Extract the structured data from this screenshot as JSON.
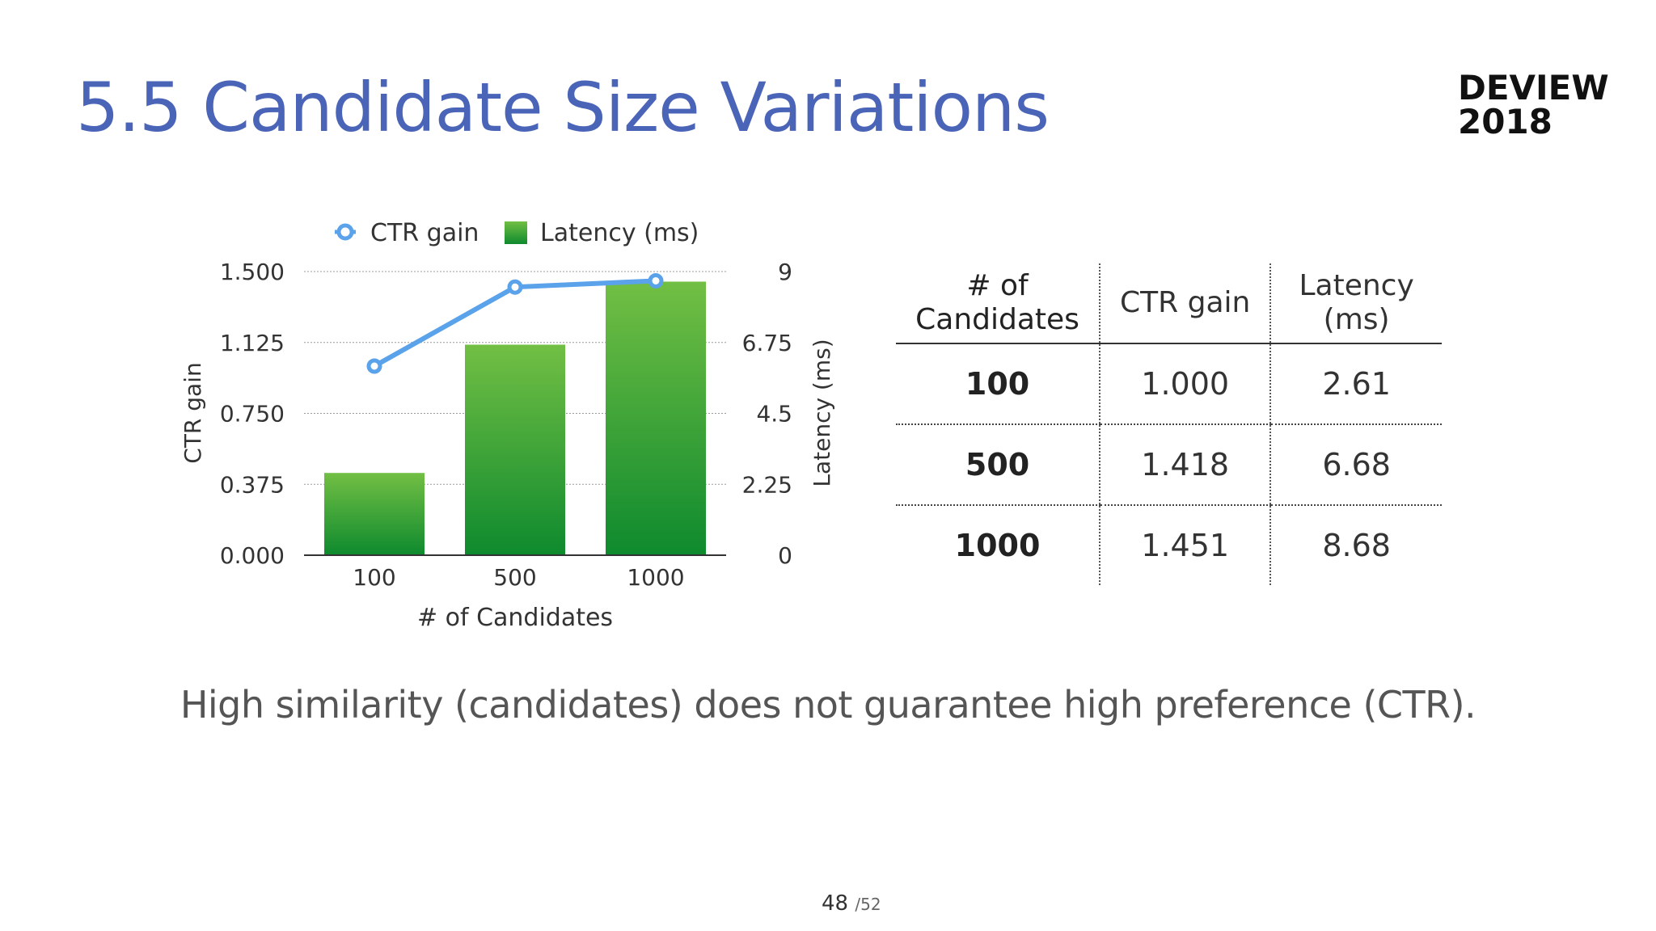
{
  "title": "5.5 Candidate Size Variations",
  "brand": {
    "line1": "DEVIEW",
    "line2": "2018"
  },
  "chart_data": {
    "type": "bar",
    "categories": [
      "100",
      "500",
      "1000"
    ],
    "xlabel": "# of Candidates",
    "ylabel_left": "CTR gain",
    "ylabel_right": "Latency (ms)",
    "ylim_left": [
      0,
      1.5
    ],
    "ylim_right": [
      0,
      9
    ],
    "yticks_left": [
      "0.000",
      "0.375",
      "0.750",
      "1.125",
      "1.500"
    ],
    "yticks_right": [
      "0",
      "2.25",
      "4.5",
      "6.75",
      "9"
    ],
    "grid": true,
    "legend_position": "top",
    "series": [
      {
        "name": "CTR gain",
        "kind": "line",
        "axis": "left",
        "values": [
          1.0,
          1.418,
          1.451
        ],
        "color": "#5aa2ea"
      },
      {
        "name": "Latency (ms)",
        "kind": "bar",
        "axis": "right",
        "values": [
          2.61,
          6.68,
          8.68
        ],
        "color": "#2ea33b"
      }
    ]
  },
  "table": {
    "headers": [
      [
        "# of",
        "Candidates"
      ],
      [
        "CTR gain"
      ],
      [
        "Latency",
        "(ms)"
      ]
    ],
    "rows": [
      [
        "100",
        "1.000",
        "2.61"
      ],
      [
        "500",
        "1.418",
        "6.68"
      ],
      [
        "1000",
        "1.451",
        "8.68"
      ]
    ]
  },
  "caption": "High similarity (candidates) does not guarantee high preference (CTR).",
  "page": {
    "current": "48",
    "total": "/52"
  }
}
